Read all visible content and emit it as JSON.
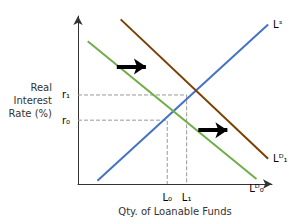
{
  "chart_data": {
    "type": "line",
    "xlabel": "Qty. of Loanable Funds",
    "ylabel": "Real\nInterest\nRate (%)",
    "xlim": [
      0,
      10
    ],
    "ylim": [
      0,
      10
    ],
    "xticks": [
      {
        "value": 4.6,
        "label": "L₀"
      },
      {
        "value": 5.6,
        "label": "L₁"
      }
    ],
    "yticks": [
      {
        "value": 3.8,
        "label": "r₀"
      },
      {
        "value": 5.3,
        "label": "r₁"
      }
    ],
    "grid": false,
    "series": [
      {
        "name": "Lˢ",
        "color": "#4472C4",
        "x": [
          1.0,
          9.8
        ],
        "values": [
          0.2,
          9.5
        ]
      },
      {
        "name": "Lᴰ₁",
        "color": "#7B3F00",
        "x": [
          2.2,
          9.8
        ],
        "values": [
          9.8,
          1.5
        ]
      },
      {
        "name": "Lᴰ₀",
        "color": "#70AD47",
        "x": [
          0.5,
          9.2
        ],
        "values": [
          8.5,
          0.3
        ]
      }
    ],
    "reference_points": [
      {
        "x": 4.6,
        "y": 3.8
      },
      {
        "x": 5.6,
        "y": 5.3
      }
    ],
    "arrows": [
      {
        "x": 2.0,
        "y": 7.0,
        "x_end": 3.5
      },
      {
        "x": 6.2,
        "y": 3.2,
        "x_end": 7.7
      }
    ]
  }
}
